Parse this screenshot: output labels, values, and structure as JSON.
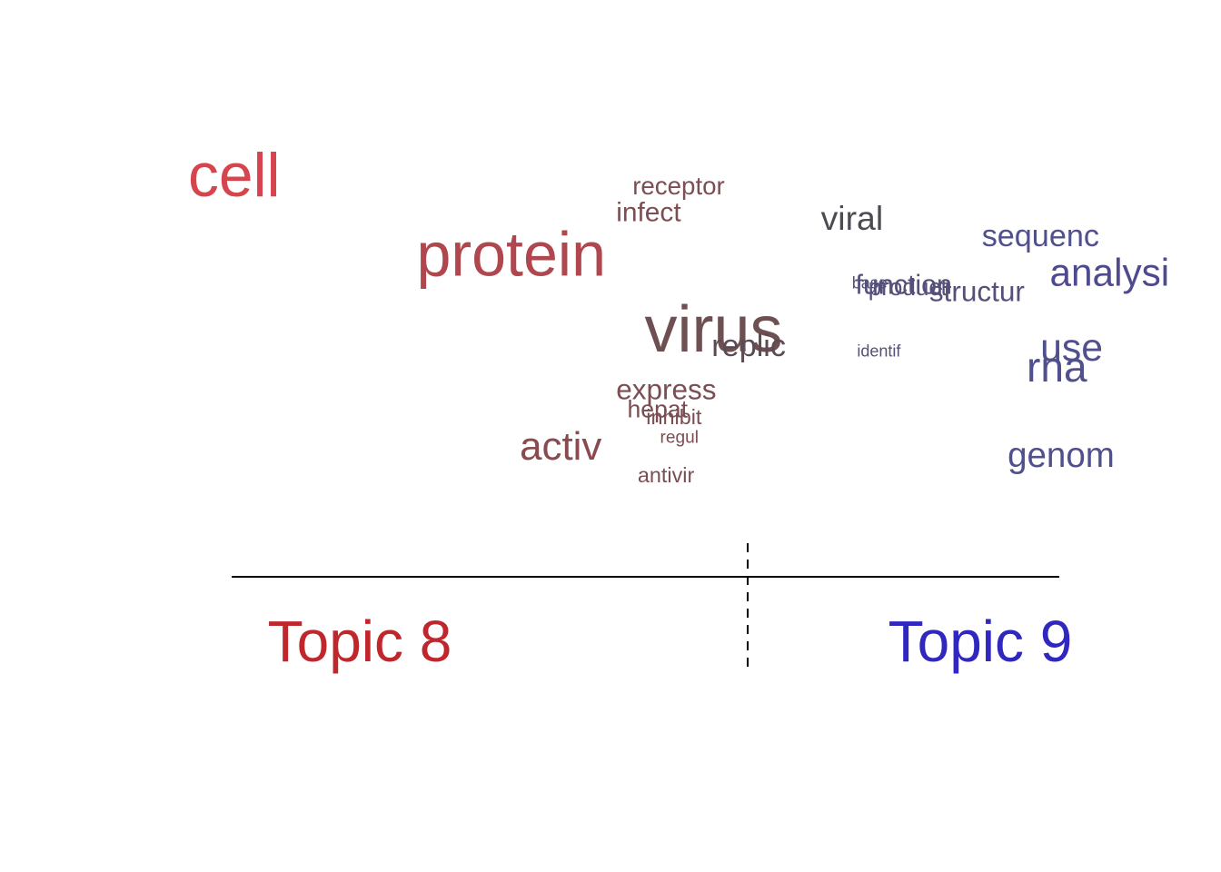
{
  "chart_data": {
    "type": "scatter",
    "chart_subtype": "topic contrast word plot",
    "xlabel": "",
    "ylabel": "",
    "topics": [
      {
        "label": "Topic 8",
        "color": "#c0272d",
        "side": "left"
      },
      {
        "label": "Topic 9",
        "color": "#3026c0",
        "side": "right"
      }
    ],
    "axis_line": {
      "color": "#000000"
    },
    "divider": {
      "style": "dashed",
      "color": "#000000"
    },
    "words": [
      {
        "word": "cell",
        "x": 0.0,
        "y": 0.962,
        "weight": 0.92,
        "color": "#d6444d"
      },
      {
        "word": "receptor",
        "x": 0.468,
        "y": 0.968,
        "weight": 0.18,
        "color": "#7a4e52"
      },
      {
        "word": "infect",
        "x": 0.449,
        "y": 0.894,
        "weight": 0.22,
        "color": "#7c4e52"
      },
      {
        "word": "viral",
        "x": 0.687,
        "y": 0.87,
        "weight": 0.36,
        "color": "#4e4a52"
      },
      {
        "word": "sequenc",
        "x": 0.874,
        "y": 0.826,
        "weight": 0.3,
        "color": "#50508e"
      },
      {
        "word": "protein",
        "x": 0.217,
        "y": 0.745,
        "weight": 0.93,
        "color": "#b0474e"
      },
      {
        "word": "analysi",
        "x": 0.953,
        "y": 0.717,
        "weight": 0.45,
        "color": "#4e4a90"
      },
      {
        "word": "base",
        "x": 0.723,
        "y": 0.71,
        "weight": 0.0,
        "color": "#55507a"
      },
      {
        "word": "function",
        "x": 0.727,
        "y": 0.694,
        "weight": 0.23,
        "color": "#55507a"
      },
      {
        "word": "product",
        "x": 0.742,
        "y": 0.691,
        "weight": 0.15,
        "color": "#55507a"
      },
      {
        "word": "structur",
        "x": 0.813,
        "y": 0.674,
        "weight": 0.25,
        "color": "#55507a"
      },
      {
        "word": "virus",
        "x": 0.482,
        "y": 0.536,
        "weight": 1.0,
        "color": "#6e5052"
      },
      {
        "word": "replic",
        "x": 0.56,
        "y": 0.524,
        "weight": 0.3,
        "color": "#5a4c52"
      },
      {
        "word": "identif",
        "x": 0.729,
        "y": 0.523,
        "weight": 0.0,
        "color": "#55507a"
      },
      {
        "word": "use",
        "x": 0.942,
        "y": 0.511,
        "weight": 0.46,
        "color": "#50508e"
      },
      {
        "word": "rna",
        "x": 1.0,
        "y": 0.454,
        "weight": 0.52,
        "color": "#50508e"
      },
      {
        "word": "express",
        "x": 0.449,
        "y": 0.405,
        "weight": 0.25,
        "color": "#7a4e52"
      },
      {
        "word": "hepat",
        "x": 0.462,
        "y": 0.355,
        "weight": 0.16,
        "color": "#7a4e52"
      },
      {
        "word": "inhibit",
        "x": 0.484,
        "y": 0.337,
        "weight": 0.1,
        "color": "#7a4e52"
      },
      {
        "word": "regul",
        "x": 0.5,
        "y": 0.285,
        "weight": 0.02,
        "color": "#7a4e52"
      },
      {
        "word": "activ",
        "x": 0.337,
        "y": 0.24,
        "weight": 0.48,
        "color": "#8a4a50"
      },
      {
        "word": "genom",
        "x": 0.904,
        "y": 0.22,
        "weight": 0.38,
        "color": "#50508e"
      },
      {
        "word": "antivir",
        "x": 0.474,
        "y": 0.177,
        "weight": 0.1,
        "color": "#7a4e52"
      }
    ]
  }
}
